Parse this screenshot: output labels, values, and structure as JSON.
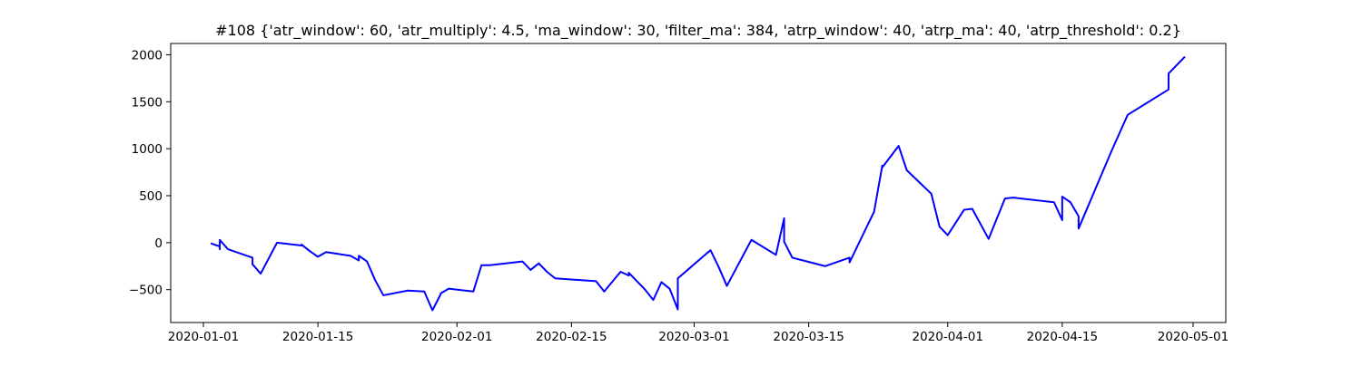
{
  "chart_data": {
    "type": "line",
    "title": "#108 {'atr_window': 60, 'atr_multiply': 4.5, 'ma_window': 30, 'filter_ma': 384, 'atrp_window': 40, 'atrp_ma': 40, 'atrp_threshold': 0.2}",
    "xlabel": "",
    "ylabel": "",
    "xlim": [
      "2019-12-28",
      "2020-05-05"
    ],
    "ylim": [
      -850,
      2120
    ],
    "grid": false,
    "legend": "none",
    "x_ticks": [
      "2020-01-01",
      "2020-01-15",
      "2020-02-01",
      "2020-02-15",
      "2020-03-01",
      "2020-03-15",
      "2020-04-01",
      "2020-04-15",
      "2020-05-01"
    ],
    "y_ticks": [
      -500,
      0,
      500,
      1000,
      1500,
      2000
    ],
    "series": [
      {
        "color": "#0000ff",
        "x": [
          "2020-01-02",
          "2020-01-02",
          "2020-01-03",
          "2020-01-03",
          "2020-01-03",
          "2020-01-04",
          "2020-01-04",
          "2020-01-07",
          "2020-01-07",
          "2020-01-08",
          "2020-01-10",
          "2020-01-13",
          "2020-01-13",
          "2020-01-14",
          "2020-01-15",
          "2020-01-16",
          "2020-01-16",
          "2020-01-19",
          "2020-01-20",
          "2020-01-20",
          "2020-01-21",
          "2020-01-22",
          "2020-01-23",
          "2020-01-26",
          "2020-01-28",
          "2020-01-29",
          "2020-01-30",
          "2020-01-30",
          "2020-01-31",
          "2020-02-03",
          "2020-02-04",
          "2020-02-05",
          "2020-02-09",
          "2020-02-10",
          "2020-02-11",
          "2020-02-12",
          "2020-02-13",
          "2020-02-18",
          "2020-02-19",
          "2020-02-21",
          "2020-02-22",
          "2020-02-22",
          "2020-02-24",
          "2020-02-25",
          "2020-02-26",
          "2020-02-27",
          "2020-02-27",
          "2020-02-28",
          "2020-02-28",
          "2020-03-03",
          "2020-03-04",
          "2020-03-05",
          "2020-03-08",
          "2020-03-11",
          "2020-03-12",
          "2020-03-12",
          "2020-03-13",
          "2020-03-17",
          "2020-03-20",
          "2020-03-20",
          "2020-03-23",
          "2020-03-24",
          "2020-03-24",
          "2020-03-26",
          "2020-03-27",
          "2020-03-30",
          "2020-03-31",
          "2020-04-01",
          "2020-04-03",
          "2020-04-04",
          "2020-04-06",
          "2020-04-08",
          "2020-04-09",
          "2020-04-14",
          "2020-04-15",
          "2020-04-15",
          "2020-04-16",
          "2020-04-17",
          "2020-04-17",
          "2020-04-21",
          "2020-04-23",
          "2020-04-28",
          "2020-04-28",
          "2020-04-30"
        ],
        "y": [
          0,
          -10,
          -40,
          -70,
          30,
          -70,
          -70,
          -160,
          -230,
          -330,
          0,
          -30,
          -20,
          -90,
          -150,
          -100,
          -100,
          -140,
          -190,
          -140,
          -200,
          -400,
          -560,
          -510,
          -520,
          -720,
          -550,
          -540,
          -490,
          -520,
          -240,
          -240,
          -200,
          -290,
          -220,
          -310,
          -380,
          -410,
          -520,
          -310,
          -350,
          -320,
          -500,
          -610,
          -420,
          -490,
          -490,
          -710,
          -380,
          -80,
          -260,
          -460,
          30,
          -130,
          260,
          10,
          -160,
          -250,
          -160,
          -210,
          330,
          820,
          800,
          1030,
          770,
          520,
          170,
          80,
          350,
          360,
          40,
          470,
          480,
          430,
          240,
          490,
          430,
          280,
          150,
          970,
          1360,
          1630,
          1800,
          1980
        ]
      }
    ]
  }
}
